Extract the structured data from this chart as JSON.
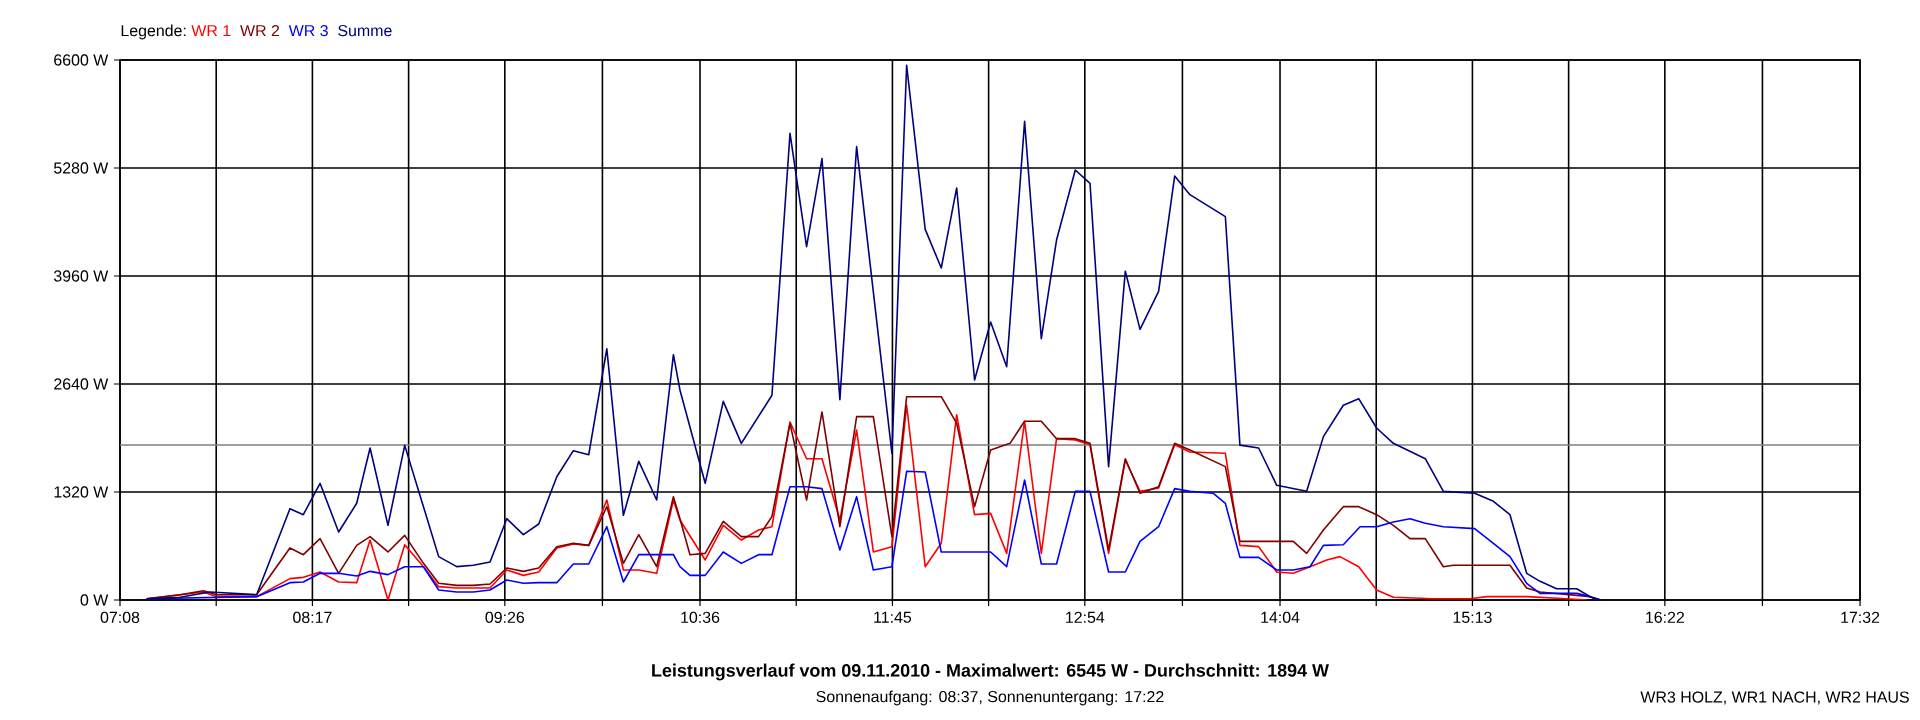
{
  "chart_data": {
    "type": "line",
    "title": "Leistungsverlauf vom 09.11.2010 - Maximalwert: 6545 W - Durchschnitt: 1894 W",
    "subtitle": "Sonnenaufgang: 08:37, Sonnenuntergang: 17:22",
    "annotations": [
      "WR3 HOLZ, WR1 NACH, WR2 HAUS"
    ],
    "legend_title": "Legende:",
    "legend": "top left",
    "grid": true,
    "marker": "none",
    "line_style": "solid",
    "xlim": [
      7.1333,
      17.5333
    ],
    "xticks": [
      {
        "value": 7.1333,
        "label": "07:08"
      },
      {
        "value": 7.7083,
        "label": null
      },
      {
        "value": 8.2833,
        "label": "08:17"
      },
      {
        "value": 8.8583,
        "label": null
      },
      {
        "value": 9.4333,
        "label": "09:26"
      },
      {
        "value": 10.0167,
        "label": null
      },
      {
        "value": 10.6,
        "label": "10:36"
      },
      {
        "value": 11.175,
        "label": null
      },
      {
        "value": 11.75,
        "label": "11:45"
      },
      {
        "value": 12.325,
        "label": null
      },
      {
        "value": 12.9,
        "label": "12:54"
      },
      {
        "value": 13.4833,
        "label": null
      },
      {
        "value": 14.0667,
        "label": "14:04"
      },
      {
        "value": 14.6417,
        "label": null
      },
      {
        "value": 15.2167,
        "label": "15:13"
      },
      {
        "value": 15.7917,
        "label": null
      },
      {
        "value": 16.3667,
        "label": "16:22"
      },
      {
        "value": 16.95,
        "label": null
      },
      {
        "value": 17.5333,
        "label": "17:32"
      }
    ],
    "ylim": [
      0,
      6600
    ],
    "yticks": [
      {
        "value": 0,
        "label": "0 W"
      },
      {
        "value": 1320,
        "label": "1320 W"
      },
      {
        "value": 2640,
        "label": "2640 W"
      },
      {
        "value": 3960,
        "label": "3960 W"
      },
      {
        "value": 5280,
        "label": "5280 W"
      },
      {
        "value": 6600,
        "label": "6600 W"
      }
    ],
    "ref_lines": [
      {
        "axis": "y",
        "value": 1894,
        "color": "#808080"
      }
    ],
    "series": [
      {
        "name": "WR 1",
        "color": "#ff0000",
        "x": [
          7.293,
          7.632,
          7.711,
          7.95,
          8.149,
          8.229,
          8.329,
          8.44,
          8.548,
          8.628,
          8.735,
          8.835,
          8.947,
          9.038,
          9.146,
          9.245,
          9.345,
          9.445,
          9.544,
          9.636,
          9.744,
          9.843,
          9.935,
          10.043,
          10.142,
          10.234,
          10.341,
          10.441,
          10.48,
          10.631,
          10.739,
          10.847,
          10.95,
          11.03,
          11.138,
          11.237,
          11.329,
          11.436,
          11.536,
          11.636,
          11.747,
          11.835,
          11.946,
          12.042,
          12.134,
          12.241,
          12.337,
          12.433,
          12.54,
          12.64,
          12.731,
          12.843,
          12.931,
          13.042,
          13.142,
          13.23,
          13.341,
          13.437,
          13.528,
          13.74,
          13.827,
          13.939,
          14.047,
          14.146,
          14.246,
          14.346,
          14.425,
          14.537,
          14.644,
          14.744,
          14.983,
          15.202,
          15.302,
          15.541,
          15.78,
          15.9
        ],
        "values": [
          16,
          98,
          41,
          41,
          261,
          277,
          342,
          220,
          212,
          733,
          0,
          676,
          407,
          163,
          147,
          147,
          147,
          367,
          301,
          342,
          636,
          684,
          668,
          1222,
          367,
          367,
          326,
          1222,
          978,
          489,
          913,
          733,
          856,
          896,
          2176,
          1727,
          1727,
          978,
          2078,
          587,
          652,
          2379,
          407,
          693,
          2265,
          1043,
          1059,
          570,
          2184,
          570,
          1972,
          1956,
          1898,
          570,
          1711,
          1328,
          1369,
          1898,
          1809,
          1793,
          668,
          652,
          342,
          326,
          407,
          489,
          530,
          407,
          122,
          33,
          16,
          16,
          41,
          41,
          16,
          0
        ]
      },
      {
        "name": "WR 2",
        "color": "#800000",
        "x": [
          7.293,
          7.492,
          7.632,
          7.711,
          7.95,
          8.149,
          8.229,
          8.329,
          8.44,
          8.548,
          8.628,
          8.735,
          8.835,
          8.947,
          9.038,
          9.146,
          9.245,
          9.345,
          9.445,
          9.544,
          9.636,
          9.744,
          9.843,
          9.935,
          10.043,
          10.142,
          10.234,
          10.341,
          10.441,
          10.48,
          10.54,
          10.631,
          10.739,
          10.847,
          10.95,
          11.03,
          11.138,
          11.237,
          11.329,
          11.436,
          11.536,
          11.636,
          11.747,
          11.835,
          12.042,
          12.134,
          12.241,
          12.337,
          12.453,
          12.54,
          12.64,
          12.731,
          12.843,
          12.931,
          13.042,
          13.142,
          13.23,
          13.341,
          13.437,
          13.528,
          13.74,
          13.827,
          13.939,
          14.146,
          14.226,
          14.326,
          14.445,
          14.537,
          14.644,
          14.744,
          14.844,
          14.935,
          15.043,
          15.103,
          15.441,
          15.541,
          15.621,
          15.92,
          15.959
        ],
        "values": [
          16,
          65,
          114,
          65,
          65,
          636,
          554,
          750,
          326,
          668,
          774,
          587,
          790,
          448,
          204,
          179,
          179,
          196,
          391,
          350,
          391,
          652,
          693,
          668,
          1141,
          448,
          798,
          407,
          1263,
          994,
          554,
          570,
          961,
          774,
          774,
          1019,
          2159,
          1222,
          2298,
          896,
          2241,
          2241,
          774,
          2485,
          2485,
          2159,
          1141,
          1833,
          1915,
          2184,
          2184,
          1972,
          1972,
          1915,
          611,
          1727,
          1304,
          1385,
          1915,
          1833,
          1630,
          717,
          717,
          717,
          570,
          856,
          1141,
          1141,
          1043,
          913,
          750,
          750,
          407,
          424,
          424,
          147,
          98,
          41,
          0
        ]
      },
      {
        "name": "WR 3",
        "color": "#0000ff",
        "x": [
          7.293,
          7.95,
          8.149,
          8.229,
          8.329,
          8.44,
          8.548,
          8.628,
          8.735,
          8.835,
          8.947,
          9.038,
          9.146,
          9.245,
          9.345,
          9.445,
          9.544,
          9.636,
          9.744,
          9.843,
          9.935,
          10.043,
          10.142,
          10.234,
          10.341,
          10.441,
          10.48,
          10.54,
          10.631,
          10.739,
          10.847,
          10.95,
          11.03,
          11.138,
          11.237,
          11.329,
          11.436,
          11.536,
          11.636,
          11.747,
          11.835,
          11.946,
          12.042,
          12.337,
          12.433,
          12.54,
          12.64,
          12.731,
          12.843,
          12.931,
          13.042,
          13.142,
          13.23,
          13.341,
          13.437,
          13.528,
          13.668,
          13.74,
          13.827,
          13.939,
          14.047,
          14.146,
          14.246,
          14.326,
          14.445,
          14.545,
          14.644,
          14.744,
          14.844,
          14.935,
          15.043,
          15.23,
          15.342,
          15.441,
          15.541,
          15.621,
          15.84,
          15.92,
          15.979
        ],
        "values": [
          16,
          41,
          212,
          220,
          326,
          326,
          293,
          350,
          310,
          407,
          407,
          122,
          98,
          98,
          122,
          244,
          204,
          212,
          212,
          440,
          440,
          896,
          220,
          554,
          554,
          554,
          407,
          301,
          301,
          587,
          448,
          554,
          554,
          1385,
          1385,
          1361,
          611,
          1263,
          367,
          407,
          1573,
          1564,
          587,
          587,
          407,
          1467,
          440,
          440,
          1328,
          1328,
          342,
          342,
          717,
          896,
          1361,
          1328,
          1304,
          1181,
          521,
          521,
          367,
          367,
          407,
          668,
          676,
          896,
          896,
          953,
          994,
          937,
          896,
          872,
          693,
          530,
          204,
          81,
          81,
          41,
          0
        ]
      },
      {
        "name": "Summe",
        "color": "#000080",
        "x": [
          7.293,
          7.492,
          7.671,
          7.95,
          8.149,
          8.229,
          8.329,
          8.44,
          8.548,
          8.628,
          8.735,
          8.835,
          8.947,
          9.038,
          9.146,
          9.245,
          9.345,
          9.445,
          9.544,
          9.636,
          9.744,
          9.843,
          9.935,
          10.043,
          10.142,
          10.234,
          10.341,
          10.441,
          10.48,
          10.631,
          10.739,
          10.847,
          11.03,
          11.138,
          11.237,
          11.329,
          11.436,
          11.536,
          11.747,
          11.775,
          11.835,
          11.946,
          12.042,
          12.134,
          12.241,
          12.337,
          12.433,
          12.54,
          12.64,
          12.731,
          12.843,
          12.931,
          13.042,
          13.142,
          13.23,
          13.341,
          13.437,
          13.528,
          13.74,
          13.827,
          13.939,
          14.047,
          14.226,
          14.326,
          14.445,
          14.537,
          14.644,
          14.744,
          14.935,
          15.043,
          15.23,
          15.342,
          15.441,
          15.541,
          15.621,
          15.72,
          15.84,
          15.92,
          15.987
        ],
        "values": [
          16,
          33,
          98,
          65,
          1116,
          1043,
          1426,
          831,
          1182,
          1858,
          913,
          1890,
          1141,
          530,
          408,
          424,
          465,
          994,
          799,
          929,
          1507,
          1825,
          1776,
          3071,
          1035,
          1695,
          1222,
          2998,
          2567,
          1426,
          2428,
          1915,
          2502,
          5704,
          4319,
          5395,
          2449,
          5541,
          1793,
          3300,
          6535,
          4530,
          4058,
          5036,
          2689,
          3398,
          2852,
          5850,
          3194,
          4400,
          5256,
          5093,
          1630,
          4019,
          3308,
          3772,
          5182,
          4954,
          4685,
          1893,
          1858,
          1402,
          1328,
          1997,
          2380,
          2461,
          2102,
          1915,
          1727,
          1328,
          1304,
          1206,
          1043,
          326,
          228,
          138,
          138,
          41,
          0
        ]
      }
    ]
  }
}
